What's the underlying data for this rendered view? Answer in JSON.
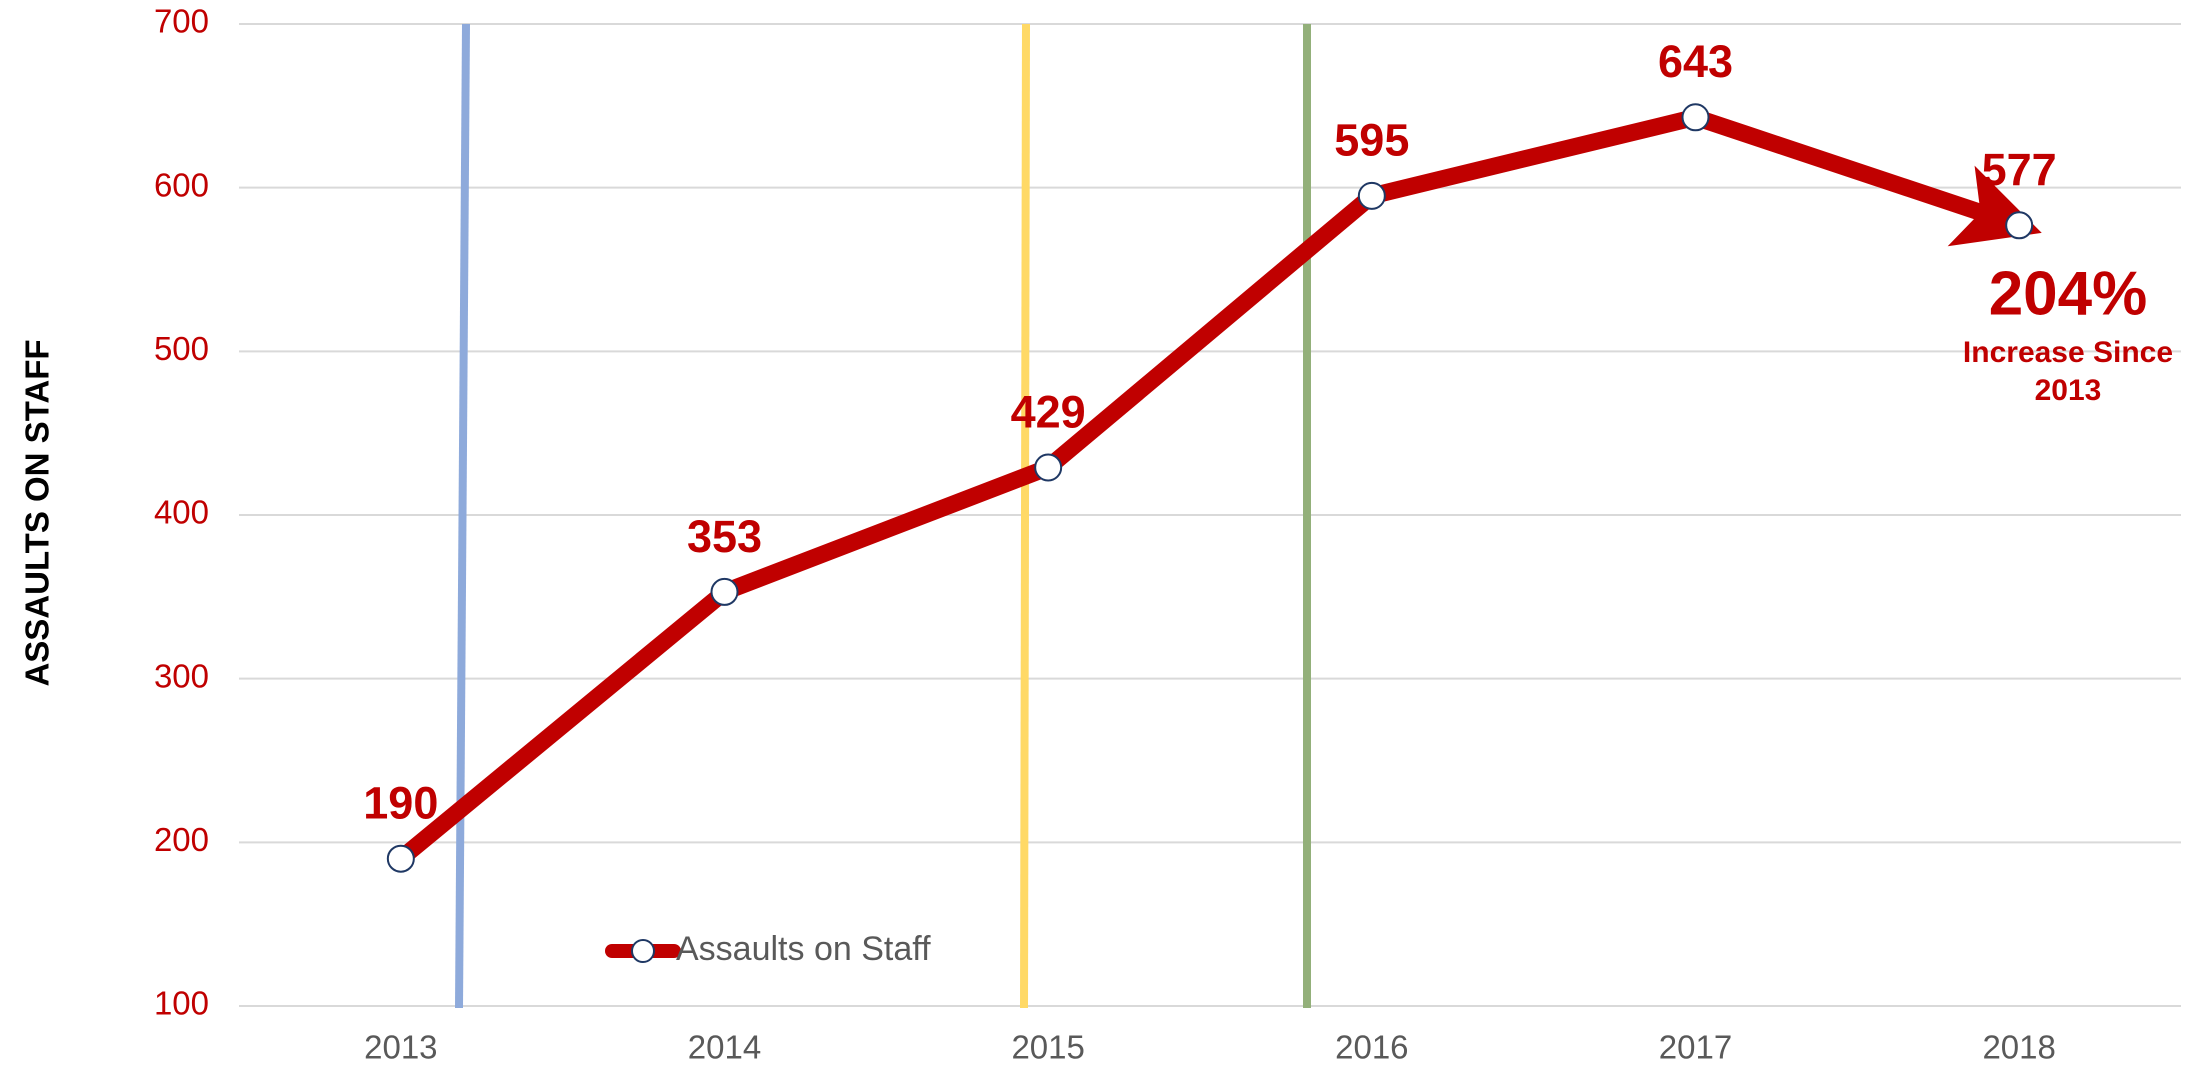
{
  "chart_data": {
    "type": "line",
    "y_axis_label": "ASSAULTS ON STAFF",
    "categories": [
      "2013",
      "2014",
      "2015",
      "2016",
      "2017",
      "2018"
    ],
    "series": [
      {
        "name": "Assaults on Staff",
        "color": "#c00000",
        "values": [
          190,
          353,
          429,
          595,
          643,
          577
        ]
      }
    ],
    "ylim": [
      100,
      700
    ],
    "yticks": [
      100,
      200,
      300,
      400,
      500,
      600,
      700
    ],
    "grid": true,
    "annotation": {
      "value": "204%",
      "lines": [
        "Increase Since",
        "2013"
      ]
    }
  }
}
